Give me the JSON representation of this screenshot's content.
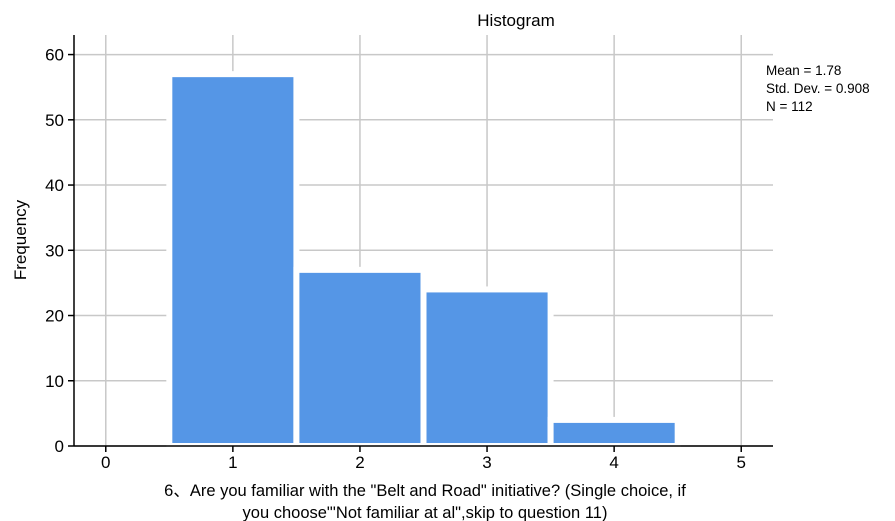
{
  "chart_data": {
    "type": "bar",
    "title": "Histogram",
    "xlabel_lines": [
      "6、Are you familiar with the \"Belt and Road\" initiative? (Single choice, if",
      "you choose\"'Not familiar at al\",skip to question 11)"
    ],
    "ylabel": "Frequency",
    "x_ticks": [
      "0",
      "1",
      "2",
      "3",
      "4",
      "5"
    ],
    "y_ticks": [
      "0",
      "10",
      "20",
      "30",
      "40",
      "50",
      "60"
    ],
    "xlim": [
      -0.25,
      5.25
    ],
    "ylim": [
      0,
      63
    ],
    "grid": true,
    "bins": [
      {
        "x": 1,
        "value": 57
      },
      {
        "x": 2,
        "value": 27
      },
      {
        "x": 3,
        "value": 24
      },
      {
        "x": 4,
        "value": 4
      }
    ],
    "bar_width_units": 1,
    "stats": [
      "Mean = 1.78",
      "Std. Dev. = 0.908",
      "N = 112"
    ],
    "bar_color": "#5596E6",
    "bar_edge_color": "#FFFFFF",
    "grid_color": "#C8C8C8",
    "axis_color": "#000000"
  }
}
